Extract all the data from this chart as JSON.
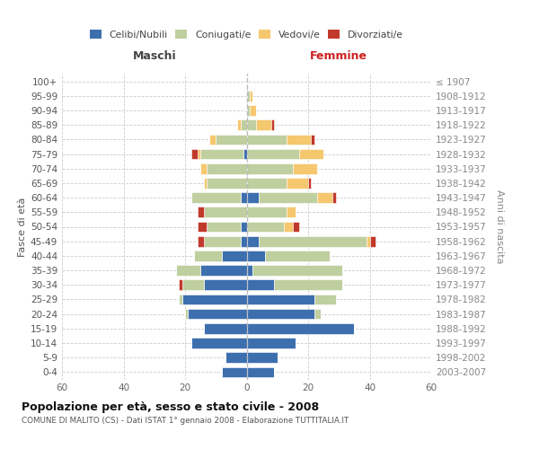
{
  "age_groups": [
    "0-4",
    "5-9",
    "10-14",
    "15-19",
    "20-24",
    "25-29",
    "30-34",
    "35-39",
    "40-44",
    "45-49",
    "50-54",
    "55-59",
    "60-64",
    "65-69",
    "70-74",
    "75-79",
    "80-84",
    "85-89",
    "90-94",
    "95-99",
    "100+"
  ],
  "birth_years": [
    "2003-2007",
    "1998-2002",
    "1993-1997",
    "1988-1992",
    "1983-1987",
    "1978-1982",
    "1973-1977",
    "1968-1972",
    "1963-1967",
    "1958-1962",
    "1953-1957",
    "1948-1952",
    "1943-1947",
    "1938-1942",
    "1933-1937",
    "1928-1932",
    "1923-1927",
    "1918-1922",
    "1913-1917",
    "1908-1912",
    "≤ 1907"
  ],
  "maschi": {
    "celibi": [
      8,
      7,
      18,
      14,
      19,
      21,
      14,
      15,
      8,
      2,
      2,
      0,
      2,
      0,
      0,
      1,
      0,
      0,
      0,
      0,
      0
    ],
    "coniugati": [
      0,
      0,
      0,
      0,
      1,
      1,
      7,
      8,
      9,
      12,
      11,
      14,
      16,
      13,
      13,
      14,
      10,
      2,
      0,
      0,
      0
    ],
    "vedovi": [
      0,
      0,
      0,
      0,
      0,
      0,
      0,
      0,
      0,
      0,
      0,
      0,
      0,
      1,
      2,
      1,
      2,
      1,
      0,
      0,
      0
    ],
    "divorziati": [
      0,
      0,
      0,
      0,
      0,
      0,
      1,
      0,
      0,
      2,
      3,
      2,
      0,
      0,
      0,
      2,
      0,
      0,
      0,
      0,
      0
    ]
  },
  "femmine": {
    "nubili": [
      9,
      10,
      16,
      35,
      22,
      22,
      9,
      2,
      6,
      4,
      0,
      0,
      4,
      0,
      0,
      0,
      0,
      0,
      0,
      0,
      0
    ],
    "coniugate": [
      0,
      0,
      0,
      0,
      2,
      7,
      22,
      29,
      21,
      35,
      12,
      13,
      19,
      13,
      15,
      17,
      13,
      3,
      1,
      1,
      0
    ],
    "vedove": [
      0,
      0,
      0,
      0,
      0,
      0,
      0,
      0,
      0,
      1,
      3,
      3,
      5,
      7,
      8,
      8,
      8,
      5,
      2,
      1,
      0
    ],
    "divorziate": [
      0,
      0,
      0,
      0,
      0,
      0,
      0,
      0,
      0,
      2,
      2,
      0,
      1,
      1,
      0,
      0,
      1,
      1,
      0,
      0,
      0
    ]
  },
  "colors": {
    "celibi": "#3d6faf",
    "coniugati": "#bfcfa0",
    "vedovi": "#f5c76e",
    "divorziati": "#c0392b"
  },
  "xlim": 60,
  "title": "Popolazione per età, sesso e stato civile - 2008",
  "subtitle": "COMUNE DI MALITO (CS) - Dati ISTAT 1° gennaio 2008 - Elaborazione TUTTITALIA.IT",
  "legend_labels": [
    "Celibi/Nubili",
    "Coniugati/e",
    "Vedovi/e",
    "Divorziati/e"
  ],
  "left_header": "Maschi",
  "right_header": "Femmine",
  "ylabel_left": "Fasce di età",
  "ylabel_right": "Anni di nascita",
  "bg_color": "#ffffff",
  "grid_color": "#cccccc",
  "header_color_left": "#444444",
  "header_color_right": "#cc2222"
}
